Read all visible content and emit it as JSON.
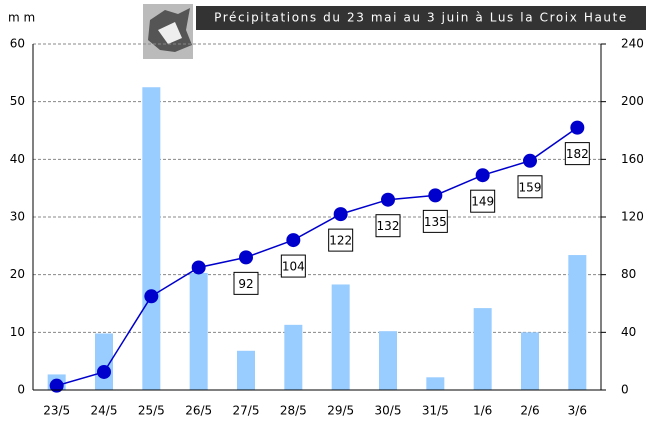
{
  "chart_data": {
    "type": "bar-line",
    "title": "Précipitations du 23 mai au 3 juin à Lus la Croix Haute",
    "y_label": "m m",
    "categories": [
      "23/5",
      "24/5",
      "25/5",
      "26/5",
      "27/5",
      "28/5",
      "29/5",
      "30/5",
      "31/5",
      "1/6",
      "2/6",
      "3/6"
    ],
    "series": [
      {
        "type": "bar",
        "color": "#99ccff",
        "values": [
          2.7,
          9.8,
          52.5,
          20.3,
          6.8,
          11.3,
          18.3,
          10.2,
          2.2,
          14.2,
          10,
          23.4
        ]
      },
      {
        "type": "line",
        "axis": "y2",
        "color": "#0000cc",
        "values": [
          3,
          12.5,
          65,
          85,
          92,
          104,
          122,
          132,
          135,
          149,
          159,
          182
        ],
        "value_labels": [
          null,
          null,
          null,
          null,
          "92",
          "104",
          "122",
          "132",
          "135",
          "149",
          "159",
          "182"
        ]
      }
    ],
    "ylim": [
      0,
      60
    ],
    "yticks": [
      0,
      10,
      20,
      30,
      40,
      50,
      60
    ],
    "y2lim": [
      0,
      240
    ],
    "y2ticks": [
      0,
      40,
      80,
      120,
      160,
      200,
      240
    ],
    "grid": true
  }
}
